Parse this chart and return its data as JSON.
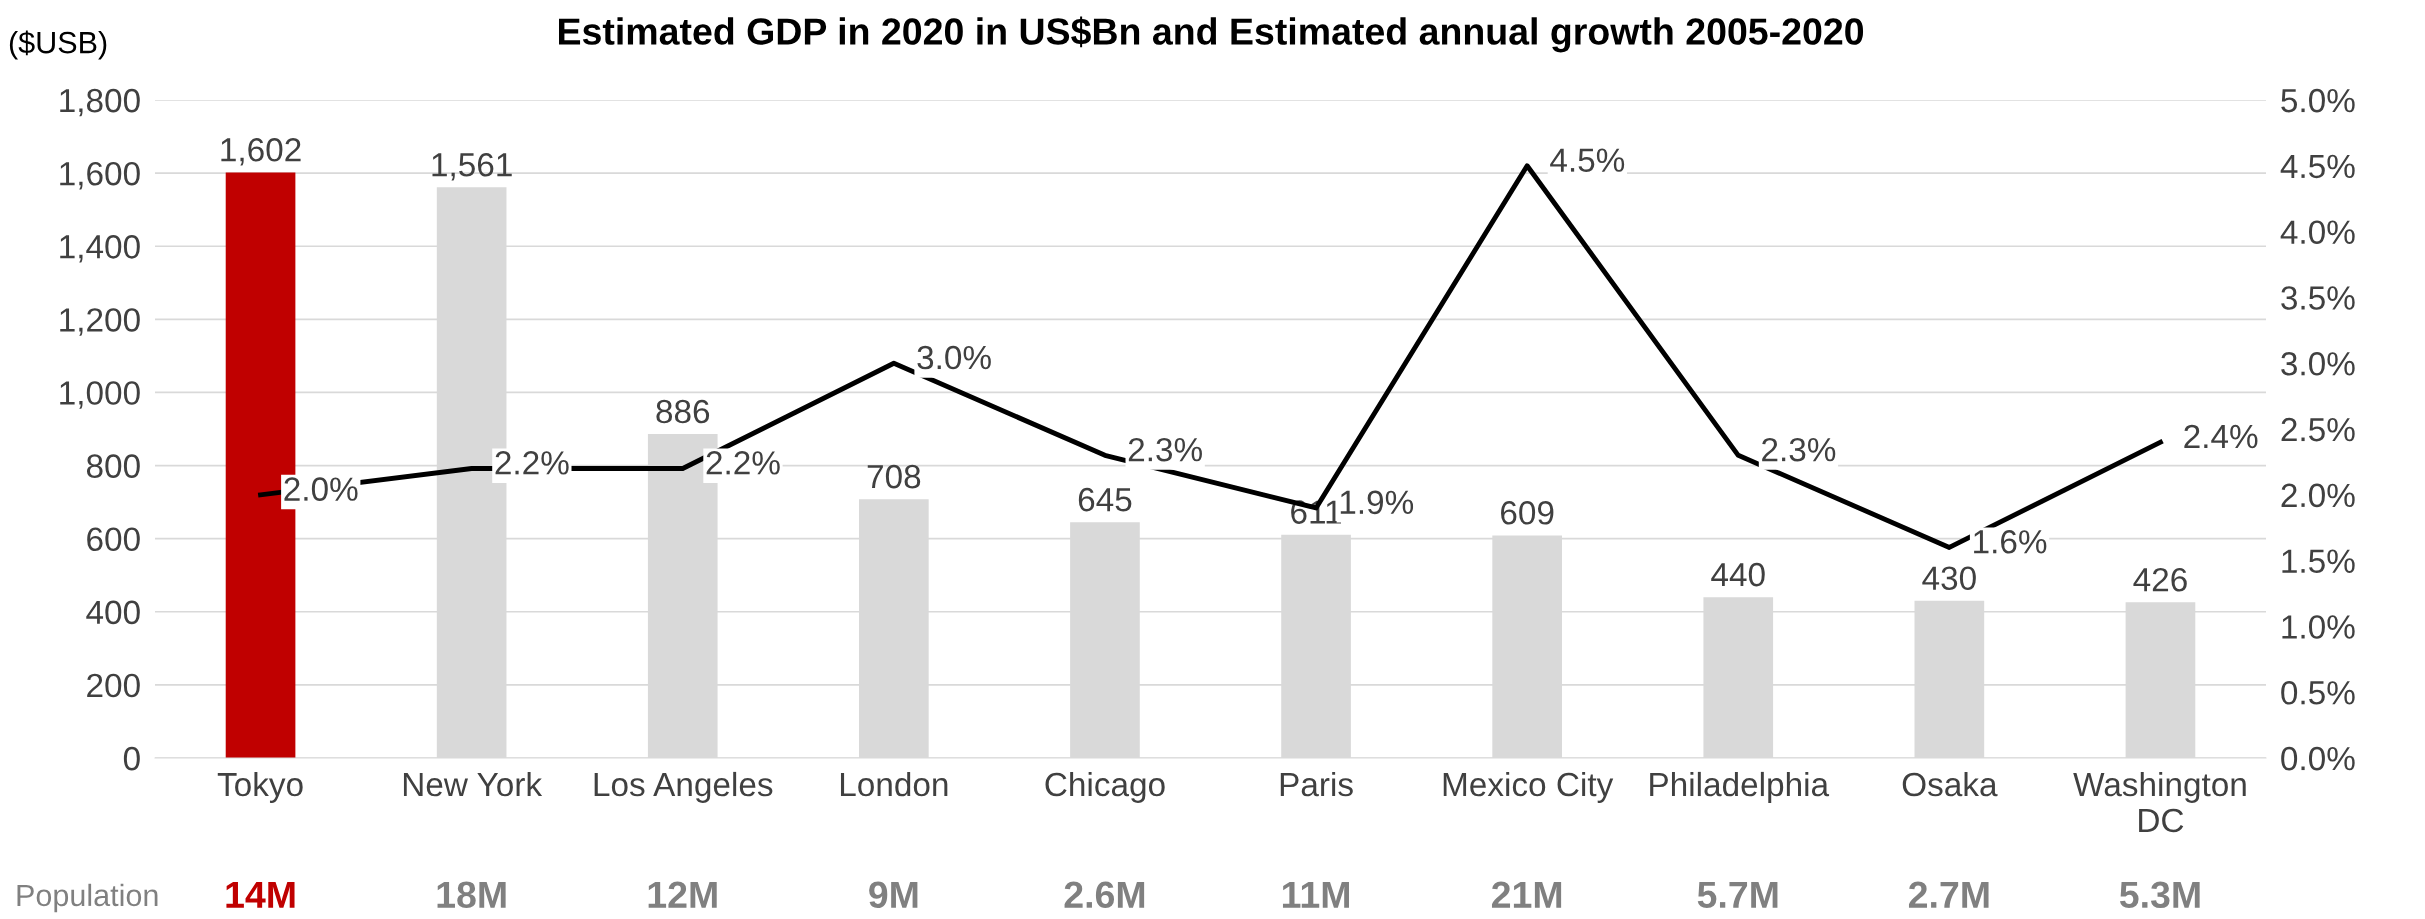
{
  "chart_data": {
    "type": "bar",
    "title": "Estimated GDP in 2020 in US$Bn and Estimated annual growth 2005-2020",
    "ylabel": "($USB)",
    "categories": [
      "Tokyo",
      "New York",
      "Los Angeles",
      "London",
      "Chicago",
      "Paris",
      "Mexico City",
      "Philadelphia",
      "Osaka",
      "Washington\nDC"
    ],
    "series": [
      {
        "colors": [
          "#c00000",
          "#d9d9d9",
          "#d9d9d9",
          "#d9d9d9",
          "#d9d9d9",
          "#d9d9d9",
          "#d9d9d9",
          "#d9d9d9",
          "#d9d9d9",
          "#d9d9d9"
        ],
        "values": [
          1602,
          1561,
          886,
          708,
          645,
          611,
          609,
          440,
          430,
          426
        ],
        "value_labels": [
          "1,602",
          "1,561",
          "886",
          "708",
          "645",
          "611",
          "609",
          "440",
          "430",
          "426"
        ]
      },
      {
        "type": "line",
        "axis": "y2",
        "color": "#000000",
        "values": [
          2.0,
          2.2,
          2.2,
          3.0,
          2.3,
          1.9,
          4.5,
          2.3,
          1.6,
          2.4
        ],
        "value_labels": [
          "2.0%",
          "2.2%",
          "2.2%",
          "3.0%",
          "2.3%",
          "1.9%",
          "4.5%",
          "2.3%",
          "1.6%",
          "2.4%"
        ]
      }
    ],
    "ylim": [
      0,
      1800
    ],
    "yticks": [
      0,
      {
        "value": 200,
        "label": "200"
      },
      400,
      600,
      800,
      {
        "value": 1000,
        "label": "1,000"
      },
      {
        "value": 1200,
        "label": "1,200"
      },
      {
        "value": 1400,
        "label": "1,400"
      },
      {
        "value": 1600,
        "label": "1,600"
      },
      {
        "value": 1800,
        "label": "1,800"
      }
    ],
    "y2lim": [
      0,
      5
    ],
    "y2ticks": [
      {
        "value": 0,
        "label": "0.0%"
      },
      {
        "value": 0.5,
        "label": "0.5%"
      },
      {
        "value": 1,
        "label": "1.0%"
      },
      {
        "value": 1.5,
        "label": "1.5%"
      },
      {
        "value": 2,
        "label": "2.0%"
      },
      {
        "value": 2.5,
        "label": "2.5%"
      },
      {
        "value": 3,
        "label": "3.0%"
      },
      {
        "value": 3.5,
        "label": "3.5%"
      },
      {
        "value": 4,
        "label": "4.0%"
      },
      {
        "value": 4.5,
        "label": "4.5%"
      },
      {
        "value": 5,
        "label": "5.0%"
      }
    ],
    "grid": "y",
    "legend": false,
    "marker": "none",
    "line_style": "solid",
    "annotations": [
      "Population",
      "14M",
      "18M",
      "12M",
      "9M",
      "2.6M",
      "11M",
      "21M",
      "5.7M",
      "2.7M",
      "5.3M"
    ]
  }
}
